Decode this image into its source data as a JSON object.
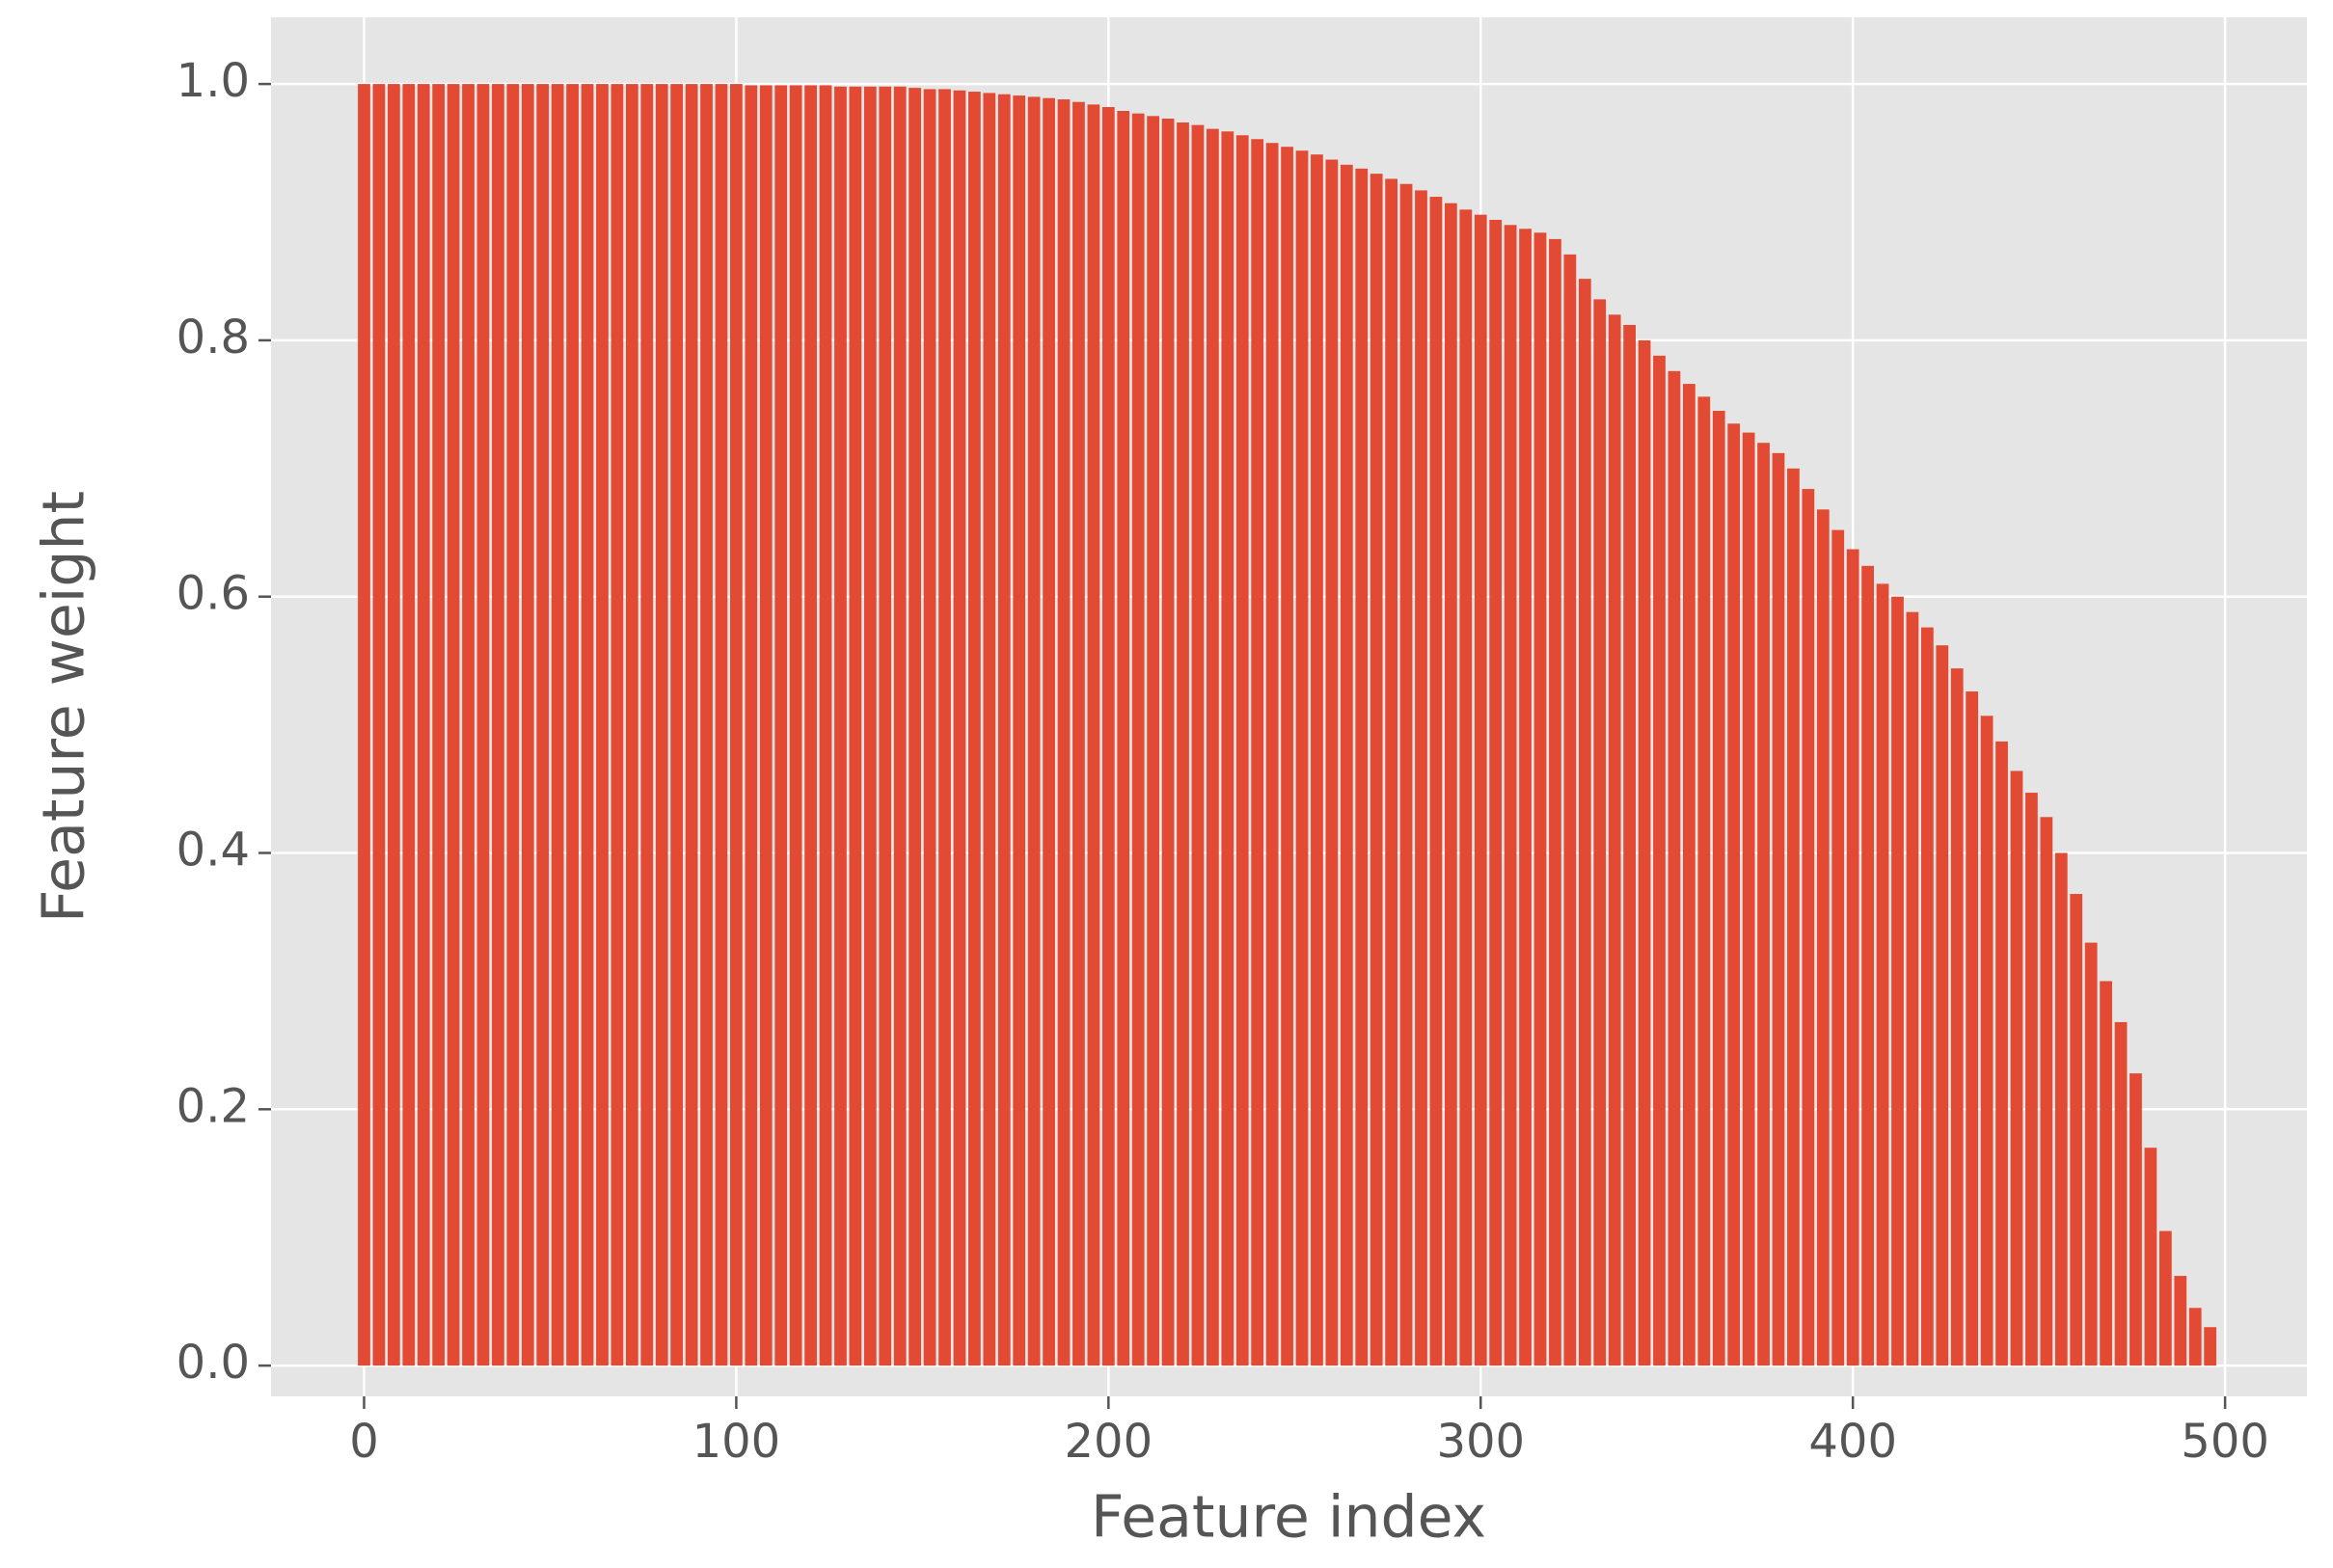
{
  "chart_data": {
    "type": "bar",
    "x_label": "Feature index",
    "y_label": "Feature weight",
    "color": "#e24a33",
    "grid": true,
    "xlim": [
      -25,
      522
    ],
    "ylim": [
      -0.024,
      1.052
    ],
    "xticks": [
      0,
      100,
      200,
      300,
      400,
      500
    ],
    "yticks": [
      {
        "value": 0,
        "label": "0.0"
      },
      0.2,
      0.4,
      0.6,
      0.8,
      {
        "value": 1,
        "label": "1.0"
      }
    ],
    "x": [
      0,
      4,
      8,
      12,
      16,
      20,
      24,
      28,
      32,
      36,
      40,
      44,
      48,
      52,
      56,
      60,
      64,
      68,
      72,
      76,
      80,
      84,
      88,
      92,
      96,
      100,
      104,
      108,
      112,
      116,
      120,
      124,
      128,
      132,
      136,
      140,
      144,
      148,
      152,
      156,
      160,
      164,
      168,
      172,
      176,
      180,
      184,
      188,
      192,
      196,
      200,
      204,
      208,
      212,
      216,
      220,
      224,
      228,
      232,
      236,
      240,
      244,
      248,
      252,
      256,
      260,
      264,
      268,
      272,
      276,
      280,
      284,
      288,
      292,
      296,
      300,
      304,
      308,
      312,
      316,
      320,
      324,
      328,
      332,
      336,
      340,
      344,
      348,
      352,
      356,
      360,
      364,
      368,
      372,
      376,
      380,
      384,
      388,
      392,
      396,
      400,
      404,
      408,
      412,
      416,
      420,
      424,
      428,
      432,
      436,
      440,
      444,
      448,
      452,
      456,
      460,
      464,
      468,
      472,
      476,
      480,
      484,
      488,
      492,
      496
    ],
    "values": [
      1,
      1,
      1,
      1,
      1,
      1,
      1,
      1,
      1,
      1,
      1,
      1,
      1,
      1,
      1,
      1,
      1,
      1,
      1,
      1,
      1,
      1,
      1,
      1,
      1,
      1,
      0.999,
      0.999,
      0.999,
      0.999,
      0.999,
      0.999,
      0.998,
      0.998,
      0.998,
      0.998,
      0.998,
      0.997,
      0.996,
      0.996,
      0.995,
      0.994,
      0.993,
      0.992,
      0.991,
      0.99,
      0.989,
      0.988,
      0.986,
      0.984,
      0.982,
      0.979,
      0.977,
      0.975,
      0.973,
      0.97,
      0.968,
      0.965,
      0.963,
      0.96,
      0.957,
      0.954,
      0.951,
      0.948,
      0.945,
      0.941,
      0.937,
      0.934,
      0.93,
      0.926,
      0.922,
      0.917,
      0.912,
      0.907,
      0.902,
      0.898,
      0.894,
      0.89,
      0.887,
      0.884,
      0.879,
      0.867,
      0.848,
      0.832,
      0.82,
      0.812,
      0.8,
      0.788,
      0.776,
      0.766,
      0.756,
      0.745,
      0.735,
      0.728,
      0.72,
      0.712,
      0.7,
      0.684,
      0.668,
      0.652,
      0.637,
      0.624,
      0.61,
      0.6,
      0.588,
      0.576,
      0.562,
      0.544,
      0.526,
      0.507,
      0.487,
      0.464,
      0.447,
      0.428,
      0.4,
      0.368,
      0.33,
      0.3,
      0.268,
      0.228,
      0.17,
      0.105,
      0.07,
      0.045,
      0.03
    ]
  }
}
